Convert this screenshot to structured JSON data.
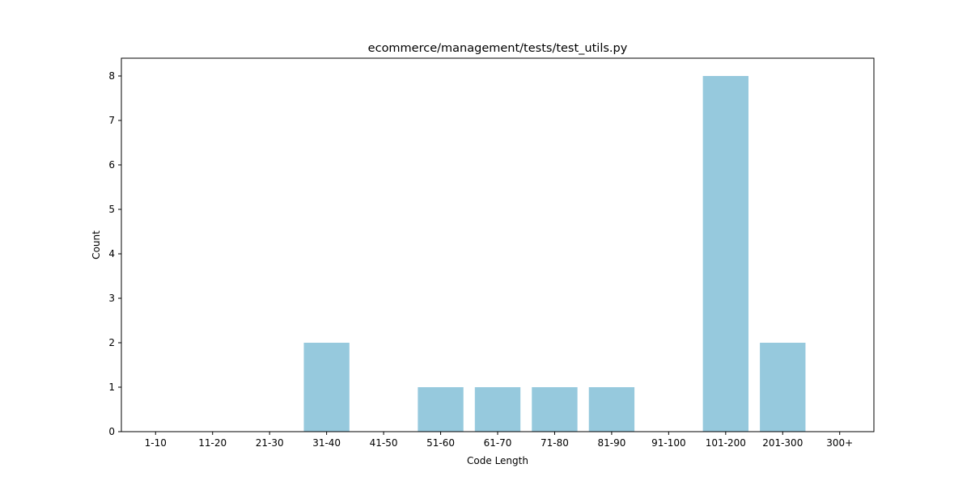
{
  "chart_data": {
    "type": "bar",
    "title": "ecommerce/management/tests/test_utils.py",
    "xlabel": "Code Length",
    "ylabel": "Count",
    "categories": [
      "1-10",
      "11-20",
      "21-30",
      "31-40",
      "41-50",
      "51-60",
      "61-70",
      "71-80",
      "81-90",
      "91-100",
      "101-200",
      "201-300",
      "300+"
    ],
    "values": [
      0,
      0,
      0,
      2,
      0,
      1,
      1,
      1,
      1,
      0,
      8,
      2,
      0
    ],
    "ylim": [
      0,
      8.4
    ],
    "yticks": [
      0,
      1,
      2,
      3,
      4,
      5,
      6,
      7,
      8
    ],
    "bar_color": "#96c9dd",
    "grid": false,
    "legend": "none"
  }
}
